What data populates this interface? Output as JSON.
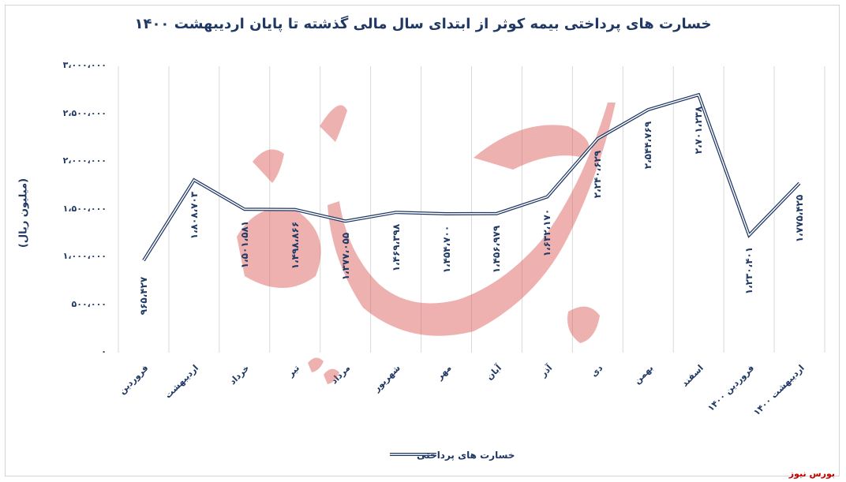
{
  "chart_data": {
    "type": "line",
    "title": "خسارت های پرداختی بیمه کوثر از ابتدای سال مالی گذشته تا پایان اردیبهشت ۱۴۰۰",
    "ylabel": "(میلیون ریال)",
    "xlabel": "",
    "ylim": [
      0,
      3000000
    ],
    "yticks": [
      "۰",
      "۵۰۰،۰۰۰",
      "۱،۰۰۰،۰۰۰",
      "۱،۵۰۰،۰۰۰",
      "۲،۰۰۰،۰۰۰",
      "۲،۵۰۰،۰۰۰",
      "۳،۰۰۰،۰۰۰"
    ],
    "categories": [
      "فروردین",
      "اردیبهشت",
      "خرداد",
      "تیر",
      "مرداد",
      "شهریور",
      "مهر",
      "آبان",
      "آذر",
      "دی",
      "بهمن",
      "اسفند",
      "فروردین ۱۴۰۰",
      "اردیبهشت ۱۴۰۰"
    ],
    "series": [
      {
        "name": "خسارت های پرداختی",
        "color": "#1f3864",
        "values": [
          965427,
          1808703,
          1501581,
          1498866,
          1377055,
          1469398,
          1454700,
          1456979,
          1632170,
          2240629,
          2544769,
          2701238,
          1230401,
          1775425
        ],
        "labels": [
          "۹۶۵،۴۲۷",
          "۱،۸۰۸،۷۰۳",
          "۱،۵۰۱،۵۸۱",
          "۱،۴۹۸،۸۶۶",
          "۱،۳۷۷،۰۵۵",
          "۱،۴۶۹،۳۹۸",
          "۱،۴۵۴،۷۰۰",
          "۱،۴۵۶،۹۷۹",
          "۱،۶۳۲،۱۷۰",
          "۲،۲۴۰،۶۲۹",
          "۲،۵۴۴،۷۶۹",
          "۲،۷۰۱،۲۳۸",
          "۱،۲۳۰،۴۰۱",
          "۱،۷۷۵،۴۲۵"
        ]
      }
    ],
    "grid": "vertical",
    "legend": "bottom"
  },
  "watermark": "بورس نیوز",
  "source": "بورس نیوز"
}
